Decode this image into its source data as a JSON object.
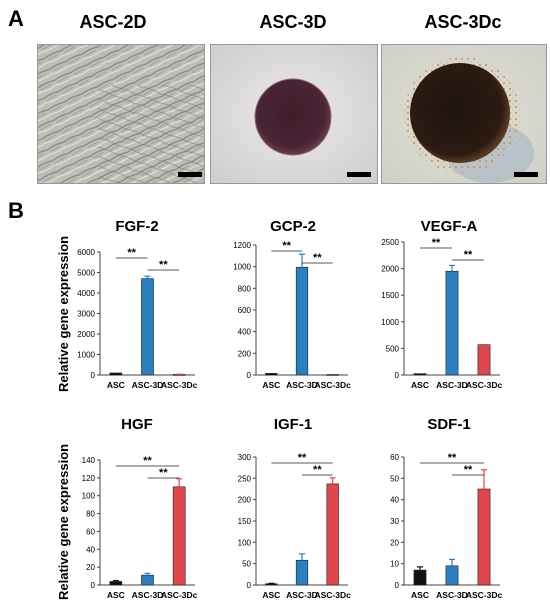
{
  "panel_a": {
    "letter": "A",
    "titles": [
      "ASC-2D",
      "ASC-3D",
      "ASC-3Dc"
    ]
  },
  "panel_b": {
    "letter": "B",
    "ylabel": "Relative gene expression"
  },
  "colors": {
    "ASC": "#111111",
    "ASC-3D": "#2a7fc0",
    "ASC-3Dc": "#e0474c"
  },
  "chart_data": [
    {
      "type": "bar",
      "title": "FGF-2",
      "categories": [
        "ASC",
        "ASC-3D",
        "ASC-3Dc"
      ],
      "values": [
        100,
        4700,
        30
      ],
      "errors": [
        0,
        120,
        10
      ],
      "ylim": [
        0,
        6000
      ],
      "yticks": [
        0,
        1000,
        2000,
        3000,
        4000,
        5000,
        6000
      ],
      "significance": [
        {
          "from": "ASC",
          "to": "ASC-3D",
          "label": "**"
        },
        {
          "from": "ASC-3D",
          "to": "ASC-3Dc",
          "label": "**"
        }
      ]
    },
    {
      "type": "bar",
      "title": "GCP-2",
      "categories": [
        "ASC",
        "ASC-3D",
        "ASC-3Dc"
      ],
      "values": [
        15,
        995,
        5
      ],
      "errors": [
        0,
        120,
        0
      ],
      "ylim": [
        0,
        1200
      ],
      "yticks": [
        0,
        200,
        400,
        600,
        800,
        1000,
        1200
      ],
      "significance": [
        {
          "from": "ASC",
          "to": "ASC-3D",
          "label": "**"
        },
        {
          "from": "ASC-3D",
          "to": "ASC-3Dc",
          "label": "**"
        }
      ]
    },
    {
      "type": "bar",
      "title": "VEGF-A",
      "categories": [
        "ASC",
        "ASC-3D",
        "ASC-3Dc"
      ],
      "values": [
        25,
        1950,
        570
      ],
      "errors": [
        0,
        110,
        0
      ],
      "ylim": [
        0,
        2500
      ],
      "yticks": [
        0,
        500,
        1000,
        1500,
        2000,
        2500
      ],
      "significance": [
        {
          "from": "ASC",
          "to": "ASC-3D",
          "label": "**"
        },
        {
          "from": "ASC-3D",
          "to": "ASC-3Dc",
          "label": "**"
        }
      ]
    },
    {
      "type": "bar",
      "title": "HGF",
      "categories": [
        "ASC",
        "ASC-3D",
        "ASC-3Dc"
      ],
      "values": [
        4,
        11,
        110
      ],
      "errors": [
        1,
        2,
        9
      ],
      "ylim": [
        0,
        140
      ],
      "yticks": [
        0,
        20,
        40,
        60,
        80,
        100,
        120,
        140
      ],
      "significance": [
        {
          "from": "ASC",
          "to": "ASC-3Dc",
          "label": "**"
        },
        {
          "from": "ASC-3D",
          "to": "ASC-3Dc",
          "label": "**"
        }
      ]
    },
    {
      "type": "bar",
      "title": "IGF-1",
      "categories": [
        "ASC",
        "ASC-3D",
        "ASC-3Dc"
      ],
      "values": [
        3,
        58,
        237
      ],
      "errors": [
        1,
        15,
        14
      ],
      "ylim": [
        0,
        300
      ],
      "yticks": [
        0,
        50,
        100,
        150,
        200,
        250,
        300
      ],
      "significance": [
        {
          "from": "ASC",
          "to": "ASC-3Dc",
          "label": "**"
        },
        {
          "from": "ASC-3D",
          "to": "ASC-3Dc",
          "label": "**"
        }
      ]
    },
    {
      "type": "bar",
      "title": "SDF-1",
      "categories": [
        "ASC",
        "ASC-3D",
        "ASC-3Dc"
      ],
      "values": [
        7,
        9,
        45
      ],
      "errors": [
        1.5,
        3,
        9
      ],
      "ylim": [
        0,
        60
      ],
      "yticks": [
        0,
        10,
        20,
        30,
        40,
        50,
        60
      ],
      "significance": [
        {
          "from": "ASC",
          "to": "ASC-3Dc",
          "label": "**"
        },
        {
          "from": "ASC-3D",
          "to": "ASC-3Dc",
          "label": "**"
        }
      ]
    }
  ]
}
